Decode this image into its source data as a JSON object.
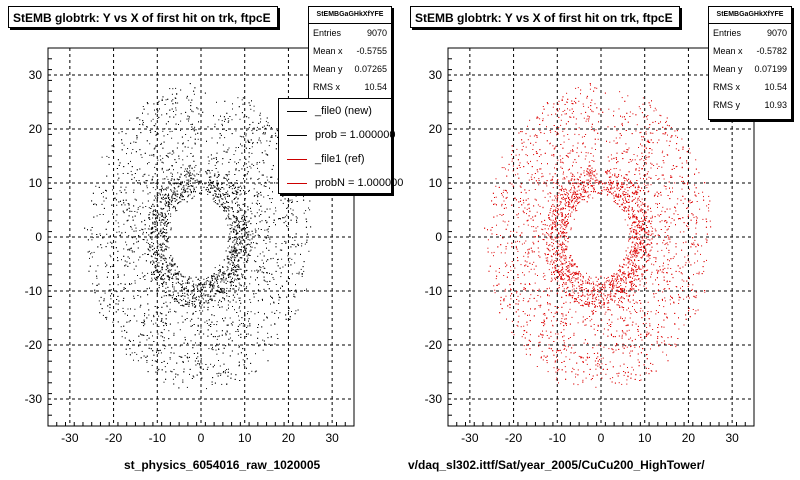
{
  "chart_data": [
    {
      "type": "scatter",
      "title": "StEMB globtrk: Y vs X of first hit on trk, ftpcE",
      "xlabel": "st_physics_6054016_raw_1020005",
      "ylabel": "",
      "xlim": [
        -35,
        35
      ],
      "ylim": [
        -35,
        35
      ],
      "x_ticks": [
        -30,
        -20,
        -10,
        0,
        10,
        20,
        30
      ],
      "y_ticks": [
        -30,
        -20,
        -10,
        0,
        10,
        20,
        30
      ],
      "grid": true,
      "marker_color": "#000000",
      "hole_radius": 7.5,
      "outer_radius": 27,
      "stats": {
        "header": "StEMBGaGHkXfYFE",
        "entries_label": "Entries",
        "entries": "9070",
        "meanx_label": "Mean x",
        "meanx": "-0.5755",
        "meany_label": "Mean y",
        "meany": "0.07265",
        "rmsx_label": "RMS x",
        "rmsx": "10.54"
      },
      "legend": {
        "placement": "top-right",
        "entries": [
          {
            "label": "_file0 (new)",
            "color": "#000000"
          },
          {
            "label": "prob = 1.000000",
            "color": "#000000"
          },
          {
            "label": "_file1 (ref)",
            "color": "#cc0000"
          },
          {
            "label": "probN = 1.000000",
            "color": "#cc0000"
          }
        ]
      }
    },
    {
      "type": "scatter",
      "title": "StEMB globtrk: Y vs X of first hit on trk, ftpcE",
      "xlabel": "v/daq_sl302.ittf/Sat/year_2005/CuCu200_HighTower/",
      "ylabel": "",
      "xlim": [
        -35,
        35
      ],
      "ylim": [
        -35,
        35
      ],
      "x_ticks": [
        -30,
        -20,
        -10,
        0,
        10,
        20,
        30
      ],
      "y_ticks": [
        -30,
        -20,
        -10,
        0,
        10,
        20,
        30
      ],
      "grid": true,
      "marker_color": "#dd0000",
      "hole_radius": 7.5,
      "outer_radius": 27,
      "stats": {
        "header": "StEMBGaGHkXfYFE",
        "entries_label": "Entries",
        "entries": "9070",
        "meanx_label": "Mean x",
        "meanx": "-0.5782",
        "meany_label": "Mean y",
        "meany": "0.07199",
        "rmsx_label": "RMS x",
        "rmsx": "10.54",
        "rmsy_label": "RMS y",
        "rmsy": "10.93"
      }
    }
  ]
}
